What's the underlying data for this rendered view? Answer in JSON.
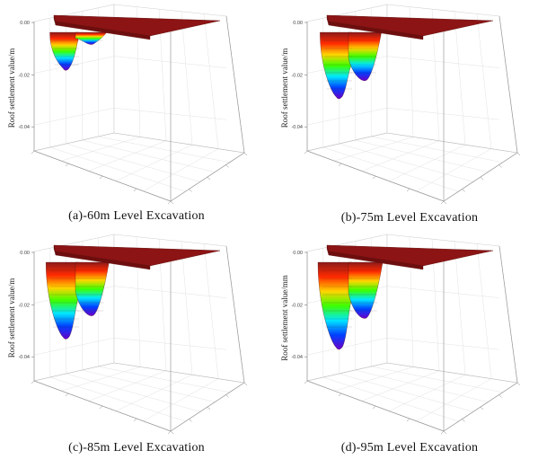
{
  "figure": {
    "captions": [
      "(a)-60m Level Excavation",
      "(b)-75m Level Excavation",
      "(c)-85m Level Excavation",
      "(d)-95m Level Excavation"
    ]
  },
  "chart_data": [
    {
      "type": "surface3d",
      "title": "(a)-60m Level Excavation",
      "zlabel": "Roof settlement value/m",
      "zticks": [
        "0.00",
        "-0.02",
        "-0.04"
      ],
      "zlim": [
        -0.05,
        0.0
      ],
      "troughs": [
        {
          "depth": -0.018,
          "position": "left"
        },
        {
          "depth": -0.008,
          "position": "right"
        }
      ],
      "colors": [
        "#8b1a1a",
        "#ff2a00",
        "#ffd400",
        "#3cff00",
        "#00e6ff",
        "#0040ff",
        "#6a00c8"
      ]
    },
    {
      "type": "surface3d",
      "title": "(b)-75m Level Excavation",
      "zlabel": "Roof settlement value/m",
      "zticks": [
        "0.00",
        "-0.02",
        "-0.04"
      ],
      "zlim": [
        -0.05,
        0.0
      ],
      "troughs": [
        {
          "depth": -0.029,
          "position": "left"
        },
        {
          "depth": -0.022,
          "position": "right"
        }
      ],
      "colors": [
        "#8b1a1a",
        "#ff2a00",
        "#ffd400",
        "#3cff00",
        "#00e6ff",
        "#0040ff",
        "#6a00c8"
      ]
    },
    {
      "type": "surface3d",
      "title": "(c)-85m Level Excavation",
      "zlabel": "Roof settlement value/m",
      "zticks": [
        "0.00",
        "-0.02",
        "-0.04"
      ],
      "zlim": [
        -0.05,
        0.0
      ],
      "troughs": [
        {
          "depth": -0.033,
          "position": "left"
        },
        {
          "depth": -0.024,
          "position": "right"
        }
      ],
      "colors": [
        "#8b1a1a",
        "#ff2a00",
        "#ffd400",
        "#3cff00",
        "#00e6ff",
        "#0040ff",
        "#6a00c8"
      ]
    },
    {
      "type": "surface3d",
      "title": "(d)-95m Level Excavation",
      "zlabel": "Roof settlement value/mm",
      "zticks": [
        "0.00",
        "-0.02",
        "-0.04"
      ],
      "zlim": [
        -0.05,
        0.0
      ],
      "troughs": [
        {
          "depth": -0.037,
          "position": "left"
        },
        {
          "depth": -0.025,
          "position": "right"
        }
      ],
      "colors": [
        "#8b1a1a",
        "#ff2a00",
        "#ffd400",
        "#3cff00",
        "#00e6ff",
        "#0040ff",
        "#6a00c8"
      ]
    }
  ]
}
